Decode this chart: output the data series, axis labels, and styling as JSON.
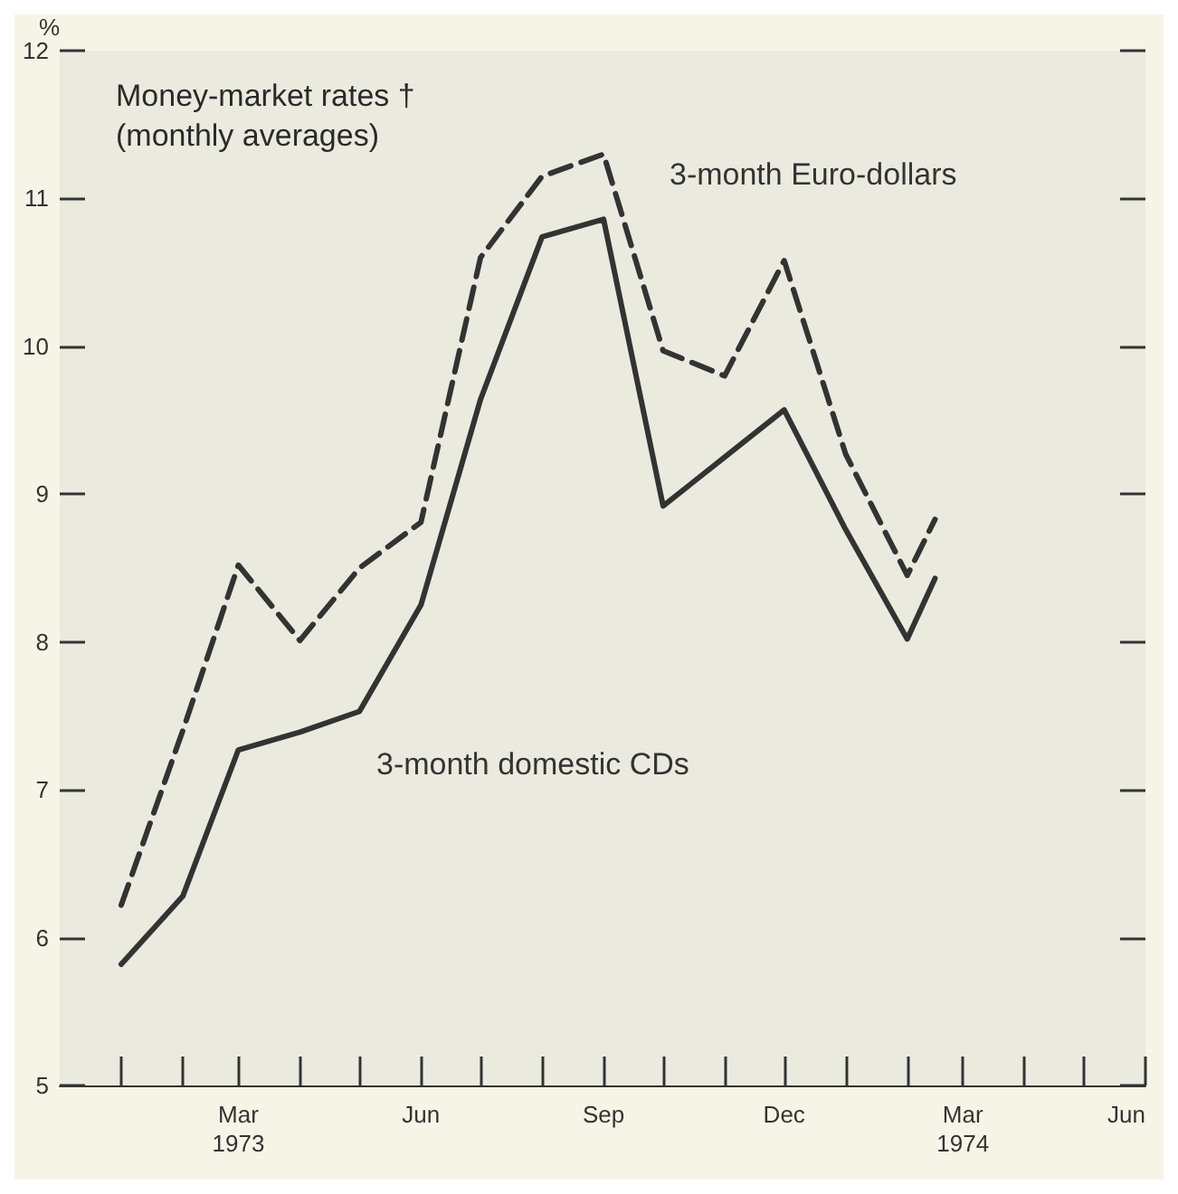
{
  "chart_data": {
    "type": "line",
    "title": "Money-market rates †\n(monthly averages)",
    "ylabel": "%",
    "x": [
      "1973-01",
      "1973-02",
      "1973-03",
      "1973-04",
      "1973-05",
      "1973-06",
      "1973-07",
      "1973-08",
      "1973-09",
      "1973-10",
      "1973-11",
      "1973-12",
      "1974-01",
      "1974-02",
      "1974-02-15"
    ],
    "series": [
      {
        "name": "3-month Euro-dollars",
        "color": "#333333",
        "line_style": "dashed",
        "values": [
          6.22,
          7.4,
          8.52,
          8.01,
          8.5,
          8.81,
          10.6,
          11.15,
          11.3,
          9.97,
          9.8,
          10.58,
          9.27,
          8.45,
          8.83
        ]
      },
      {
        "name": "3-month domestic CDs",
        "color": "#333333",
        "line_style": "solid",
        "values": [
          5.82,
          6.28,
          7.27,
          7.39,
          7.53,
          8.25,
          9.64,
          10.74,
          10.86,
          8.92,
          9.25,
          9.57,
          8.76,
          8.02,
          8.43
        ]
      }
    ],
    "xlim": [
      "1972-12",
      "1974-06"
    ],
    "xticks": [
      {
        "value": "1973-01",
        "label": null
      },
      {
        "value": "1973-02",
        "label": null
      },
      {
        "value": "1973-03",
        "label": "Mar\n1973"
      },
      {
        "value": "1973-04",
        "label": null
      },
      {
        "value": "1973-05",
        "label": null
      },
      {
        "value": "1973-06",
        "label": "Jun"
      },
      {
        "value": "1973-07",
        "label": null
      },
      {
        "value": "1973-08",
        "label": null
      },
      {
        "value": "1973-09",
        "label": "Sep"
      },
      {
        "value": "1973-10",
        "label": null
      },
      {
        "value": "1973-11",
        "label": null
      },
      {
        "value": "1973-12",
        "label": "Dec"
      },
      {
        "value": "1974-01",
        "label": null
      },
      {
        "value": "1974-02",
        "label": null
      },
      {
        "value": "1974-03",
        "label": "Mar\n1974"
      },
      {
        "value": "1974-04",
        "label": null
      },
      {
        "value": "1974-05",
        "label": null
      },
      {
        "value": "1974-06",
        "label": "Jun"
      }
    ],
    "ylim": [
      5,
      12
    ],
    "yticks": [
      5,
      6,
      7,
      8,
      9,
      10,
      11,
      12
    ],
    "grid": false,
    "legend": false,
    "marker": "none"
  }
}
